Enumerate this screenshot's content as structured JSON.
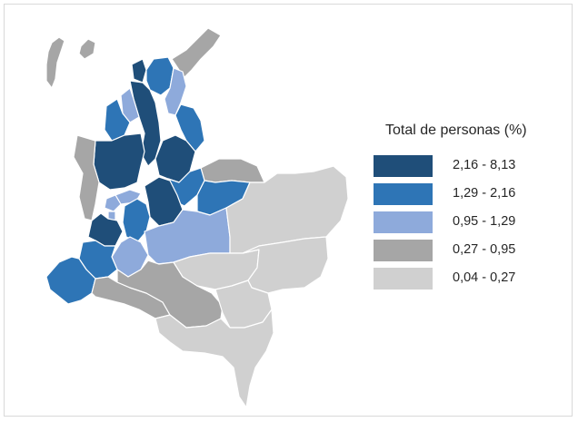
{
  "legend": {
    "title": "Total de personas (%)",
    "items": [
      {
        "label": "2,16 - 8,13",
        "color": "#1f4e79"
      },
      {
        "label": "1,29 - 2,16",
        "color": "#2e75b6"
      },
      {
        "label": "0,95 - 1,29",
        "color": "#8eaadb"
      },
      {
        "label": "0,27 - 0,95",
        "color": "#a6a6a6"
      },
      {
        "label": "0,04 - 0,27",
        "color": "#d0d0d0"
      }
    ]
  },
  "map_regions": [
    {
      "name": "san-andres",
      "bin": 3
    },
    {
      "name": "la-guajira",
      "bin": 3
    },
    {
      "name": "atlantico",
      "bin": 0
    },
    {
      "name": "magdalena",
      "bin": 1
    },
    {
      "name": "cesar",
      "bin": 2
    },
    {
      "name": "bolivar",
      "bin": 0
    },
    {
      "name": "sucre",
      "bin": 2
    },
    {
      "name": "cordoba",
      "bin": 1
    },
    {
      "name": "norte-de-santander",
      "bin": 1
    },
    {
      "name": "antioquia",
      "bin": 0
    },
    {
      "name": "santander",
      "bin": 0
    },
    {
      "name": "choco",
      "bin": 3
    },
    {
      "name": "arauca",
      "bin": 3
    },
    {
      "name": "boyaca",
      "bin": 1
    },
    {
      "name": "casanare",
      "bin": 1
    },
    {
      "name": "caldas",
      "bin": 2
    },
    {
      "name": "risaralda",
      "bin": 2
    },
    {
      "name": "cundinamarca",
      "bin": 0
    },
    {
      "name": "quindio",
      "bin": 2
    },
    {
      "name": "tolima",
      "bin": 1
    },
    {
      "name": "valle-del-cauca",
      "bin": 0
    },
    {
      "name": "meta",
      "bin": 2
    },
    {
      "name": "vichada",
      "bin": 4
    },
    {
      "name": "huila",
      "bin": 2
    },
    {
      "name": "cauca",
      "bin": 1
    },
    {
      "name": "narino",
      "bin": 1
    },
    {
      "name": "putumayo",
      "bin": 3
    },
    {
      "name": "caqueta",
      "bin": 3
    },
    {
      "name": "guaviare",
      "bin": 4
    },
    {
      "name": "guainia",
      "bin": 4
    },
    {
      "name": "vaupes",
      "bin": 4
    },
    {
      "name": "amazonas",
      "bin": 4
    }
  ]
}
